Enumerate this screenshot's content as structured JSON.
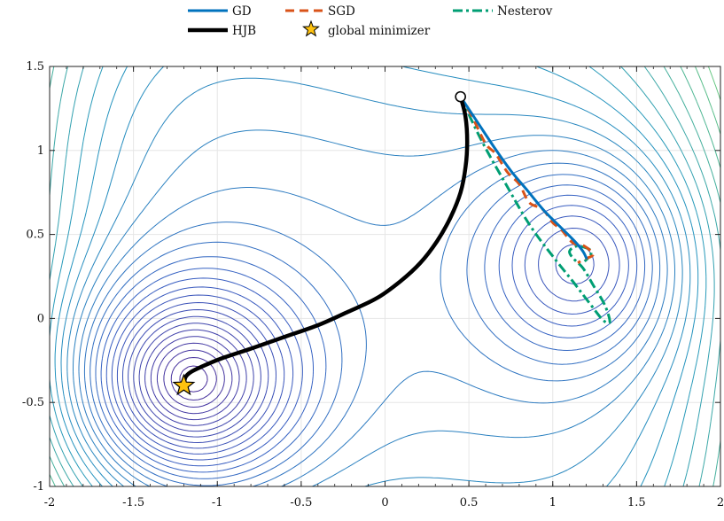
{
  "chart_data": {
    "type": "line",
    "title": "",
    "xlabel": "",
    "ylabel": "",
    "xlim": [
      -2,
      2
    ],
    "ylim": [
      -1,
      1.5
    ],
    "xticks": [
      -2,
      -1.5,
      -1,
      -0.5,
      0,
      0.5,
      1,
      1.5,
      2
    ],
    "yticks": [
      -1,
      -0.5,
      0,
      0.5,
      1,
      1.5
    ],
    "xtick_labels": [
      "-2",
      "-1.5",
      "-1",
      "-0.5",
      "0",
      "0.5",
      "1",
      "1.5",
      "2"
    ],
    "ytick_labels": [
      "-1",
      "-0.5",
      "0",
      "0.5",
      "1",
      "1.5"
    ],
    "grid": true,
    "legend_position": "top-outside",
    "background": "contour",
    "start_point": {
      "x": 0.45,
      "y": 1.32
    },
    "global_minimizer": {
      "x": -1.2,
      "y": -0.4
    },
    "local_minimum": {
      "x": 1.2,
      "y": 0.35
    },
    "series": [
      {
        "name": "GD",
        "color": "#0072BD",
        "style": "solid",
        "x": [
          0.45,
          0.55,
          0.65,
          0.75,
          0.85,
          0.95,
          1.05,
          1.13,
          1.18,
          1.2
        ],
        "y": [
          1.32,
          1.17,
          1.02,
          0.88,
          0.76,
          0.64,
          0.54,
          0.46,
          0.4,
          0.36
        ]
      },
      {
        "name": "SGD",
        "color": "#D95319",
        "style": "dashed",
        "x": [
          0.45,
          0.52,
          0.6,
          0.66,
          0.73,
          0.8,
          0.86,
          0.94,
          1.0,
          1.05,
          1.12,
          1.19,
          1.24,
          1.18,
          1.15
        ],
        "y": [
          1.32,
          1.2,
          1.04,
          0.98,
          0.87,
          0.8,
          0.69,
          0.65,
          0.57,
          0.53,
          0.45,
          0.43,
          0.38,
          0.35,
          0.33
        ]
      },
      {
        "name": "Nesterov",
        "color": "#009E73",
        "style": "dashdot",
        "x": [
          0.45,
          0.58,
          0.72,
          0.86,
          1.0,
          1.12,
          1.22,
          1.3,
          1.34,
          1.31,
          1.24,
          1.18,
          1.12,
          1.1,
          1.14,
          1.2,
          1.23,
          1.22,
          1.19
        ],
        "y": [
          1.32,
          1.05,
          0.8,
          0.56,
          0.37,
          0.22,
          0.09,
          -0.01,
          -0.02,
          0.08,
          0.2,
          0.3,
          0.36,
          0.4,
          0.43,
          0.42,
          0.4,
          0.37,
          0.34
        ]
      },
      {
        "name": "HJB",
        "color": "#000000",
        "style": "solid",
        "x": [
          0.45,
          0.48,
          0.49,
          0.48,
          0.45,
          0.39,
          0.31,
          0.21,
          0.09,
          -0.05,
          -0.22,
          -0.4,
          -0.6,
          -0.8,
          -0.98,
          -1.1,
          -1.16,
          -1.19,
          -1.2
        ],
        "y": [
          1.32,
          1.2,
          1.05,
          0.9,
          0.75,
          0.6,
          0.46,
          0.33,
          0.22,
          0.12,
          0.04,
          -0.04,
          -0.11,
          -0.18,
          -0.24,
          -0.29,
          -0.32,
          -0.35,
          -0.4
        ]
      }
    ],
    "markers": [
      {
        "name": "global minimizer",
        "shape": "star",
        "color": "#FFC20E"
      }
    ]
  }
}
